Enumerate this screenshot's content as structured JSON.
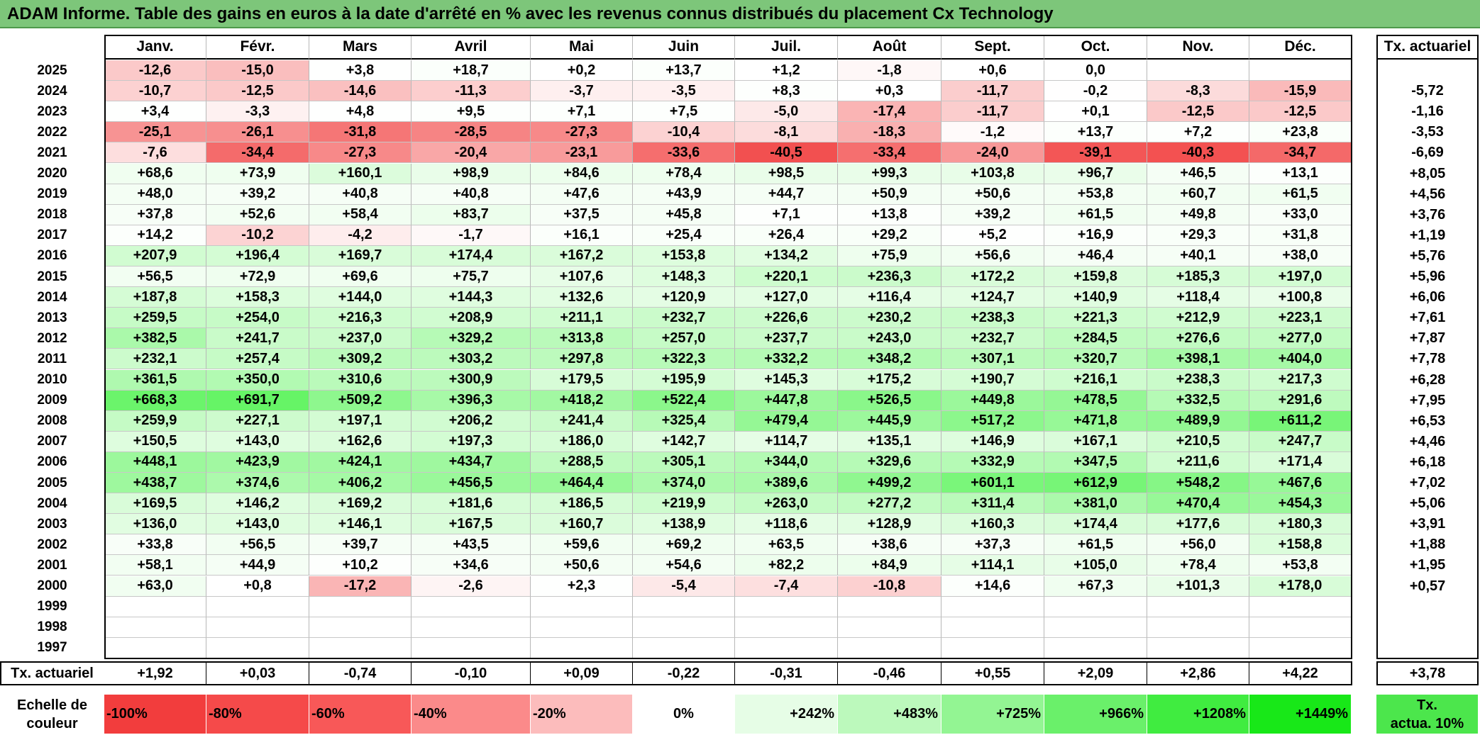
{
  "title": "ADAM Informe. Table des gains en euros à la date d'arrêté en % avec les revenus connus distribués du placement Cx Technology",
  "months": [
    "Janv.",
    "Févr.",
    "Mars",
    "Avril",
    "Mai",
    "Juin",
    "Juil.",
    "Août",
    "Sept.",
    "Oct.",
    "Nov.",
    "Déc."
  ],
  "rate_header": "Tx. actuariel",
  "rows": [
    {
      "year": "2025",
      "cells": [
        "-12,6",
        "-15,0",
        "+3,8",
        "+18,7",
        "+0,2",
        "+13,7",
        "+1,2",
        "-1,8",
        "+0,6",
        "0,0",
        "",
        ""
      ],
      "rate": ""
    },
    {
      "year": "2024",
      "cells": [
        "-10,7",
        "-12,5",
        "-14,6",
        "-11,3",
        "-3,7",
        "-3,5",
        "+8,3",
        "+0,3",
        "-11,7",
        "-0,2",
        "-8,3",
        "-15,9"
      ],
      "rate": "-5,72"
    },
    {
      "year": "2023",
      "cells": [
        "+3,4",
        "-3,3",
        "+4,8",
        "+9,5",
        "+7,1",
        "+7,5",
        "-5,0",
        "-17,4",
        "-11,7",
        "+0,1",
        "-12,5",
        "-12,5"
      ],
      "rate": "-1,16"
    },
    {
      "year": "2022",
      "cells": [
        "-25,1",
        "-26,1",
        "-31,8",
        "-28,5",
        "-27,3",
        "-10,4",
        "-8,1",
        "-18,3",
        "-1,2",
        "+13,7",
        "+7,2",
        "+23,8"
      ],
      "rate": "-3,53"
    },
    {
      "year": "2021",
      "cells": [
        "-7,6",
        "-34,4",
        "-27,3",
        "-20,4",
        "-23,1",
        "-33,6",
        "-40,5",
        "-33,4",
        "-24,0",
        "-39,1",
        "-40,3",
        "-34,7"
      ],
      "rate": "-6,69"
    },
    {
      "year": "2020",
      "cells": [
        "+68,6",
        "+73,9",
        "+160,1",
        "+98,9",
        "+84,6",
        "+78,4",
        "+98,5",
        "+99,3",
        "+103,8",
        "+96,7",
        "+46,5",
        "+13,1"
      ],
      "rate": "+8,05"
    },
    {
      "year": "2019",
      "cells": [
        "+48,0",
        "+39,2",
        "+40,8",
        "+40,8",
        "+47,6",
        "+43,9",
        "+44,7",
        "+50,9",
        "+50,6",
        "+53,8",
        "+60,7",
        "+61,5"
      ],
      "rate": "+4,56"
    },
    {
      "year": "2018",
      "cells": [
        "+37,8",
        "+52,6",
        "+58,4",
        "+83,7",
        "+37,5",
        "+45,8",
        "+7,1",
        "+13,8",
        "+39,2",
        "+61,5",
        "+49,8",
        "+33,0"
      ],
      "rate": "+3,76"
    },
    {
      "year": "2017",
      "cells": [
        "+14,2",
        "-10,2",
        "-4,2",
        "-1,7",
        "+16,1",
        "+25,4",
        "+26,4",
        "+29,2",
        "+5,2",
        "+16,9",
        "+29,3",
        "+31,8"
      ],
      "rate": "+1,19"
    },
    {
      "year": "2016",
      "cells": [
        "+207,9",
        "+196,4",
        "+169,7",
        "+174,4",
        "+167,2",
        "+153,8",
        "+134,2",
        "+75,9",
        "+56,6",
        "+46,4",
        "+40,1",
        "+38,0"
      ],
      "rate": "+5,76"
    },
    {
      "year": "2015",
      "cells": [
        "+56,5",
        "+72,9",
        "+69,6",
        "+75,7",
        "+107,6",
        "+148,3",
        "+220,1",
        "+236,3",
        "+172,2",
        "+159,8",
        "+185,3",
        "+197,0"
      ],
      "rate": "+5,96"
    },
    {
      "year": "2014",
      "cells": [
        "+187,8",
        "+158,3",
        "+144,0",
        "+144,3",
        "+132,6",
        "+120,9",
        "+127,0",
        "+116,4",
        "+124,7",
        "+140,9",
        "+118,4",
        "+100,8"
      ],
      "rate": "+6,06"
    },
    {
      "year": "2013",
      "cells": [
        "+259,5",
        "+254,0",
        "+216,3",
        "+208,9",
        "+211,1",
        "+232,7",
        "+226,6",
        "+230,2",
        "+238,3",
        "+221,3",
        "+212,9",
        "+223,1"
      ],
      "rate": "+7,61"
    },
    {
      "year": "2012",
      "cells": [
        "+382,5",
        "+241,7",
        "+237,0",
        "+329,2",
        "+313,8",
        "+257,0",
        "+237,7",
        "+243,0",
        "+232,7",
        "+284,5",
        "+276,6",
        "+277,0"
      ],
      "rate": "+7,87"
    },
    {
      "year": "2011",
      "cells": [
        "+232,1",
        "+257,4",
        "+309,2",
        "+303,2",
        "+297,8",
        "+322,3",
        "+332,2",
        "+348,2",
        "+307,1",
        "+320,7",
        "+398,1",
        "+404,0"
      ],
      "rate": "+7,78"
    },
    {
      "year": "2010",
      "cells": [
        "+361,5",
        "+350,0",
        "+310,6",
        "+300,9",
        "+179,5",
        "+195,9",
        "+145,3",
        "+175,2",
        "+190,7",
        "+216,1",
        "+238,3",
        "+217,3"
      ],
      "rate": "+6,28"
    },
    {
      "year": "2009",
      "cells": [
        "+668,3",
        "+691,7",
        "+509,2",
        "+396,3",
        "+418,2",
        "+522,4",
        "+447,8",
        "+526,5",
        "+449,8",
        "+478,5",
        "+332,5",
        "+291,6"
      ],
      "rate": "+7,95"
    },
    {
      "year": "2008",
      "cells": [
        "+259,9",
        "+227,1",
        "+197,1",
        "+206,2",
        "+241,4",
        "+325,4",
        "+479,4",
        "+445,9",
        "+517,2",
        "+471,8",
        "+489,9",
        "+611,2"
      ],
      "rate": "+6,53"
    },
    {
      "year": "2007",
      "cells": [
        "+150,5",
        "+143,0",
        "+162,6",
        "+197,3",
        "+186,0",
        "+142,7",
        "+114,7",
        "+135,1",
        "+146,9",
        "+167,1",
        "+210,5",
        "+247,7"
      ],
      "rate": "+4,46"
    },
    {
      "year": "2006",
      "cells": [
        "+448,1",
        "+423,9",
        "+424,1",
        "+434,7",
        "+288,5",
        "+305,1",
        "+344,0",
        "+329,6",
        "+332,9",
        "+347,5",
        "+211,6",
        "+171,4"
      ],
      "rate": "+6,18"
    },
    {
      "year": "2005",
      "cells": [
        "+438,7",
        "+374,6",
        "+406,2",
        "+456,5",
        "+464,4",
        "+374,0",
        "+389,6",
        "+499,2",
        "+601,1",
        "+612,9",
        "+548,2",
        "+467,6"
      ],
      "rate": "+7,02"
    },
    {
      "year": "2004",
      "cells": [
        "+169,5",
        "+146,2",
        "+169,2",
        "+181,6",
        "+186,5",
        "+219,9",
        "+263,0",
        "+277,2",
        "+311,4",
        "+381,0",
        "+470,4",
        "+454,3"
      ],
      "rate": "+5,06"
    },
    {
      "year": "2003",
      "cells": [
        "+136,0",
        "+143,0",
        "+146,1",
        "+167,5",
        "+160,7",
        "+138,9",
        "+118,6",
        "+128,9",
        "+160,3",
        "+174,4",
        "+177,6",
        "+180,3"
      ],
      "rate": "+3,91"
    },
    {
      "year": "2002",
      "cells": [
        "+33,8",
        "+56,5",
        "+39,7",
        "+43,5",
        "+59,6",
        "+69,2",
        "+63,5",
        "+38,6",
        "+37,3",
        "+61,5",
        "+56,0",
        "+158,8"
      ],
      "rate": "+1,88"
    },
    {
      "year": "2001",
      "cells": [
        "+58,1",
        "+44,9",
        "+10,2",
        "+34,6",
        "+50,6",
        "+54,6",
        "+82,2",
        "+84,9",
        "+114,1",
        "+105,0",
        "+78,4",
        "+53,8"
      ],
      "rate": "+1,95"
    },
    {
      "year": "2000",
      "cells": [
        "+63,0",
        "+0,8",
        "-17,2",
        "-2,6",
        "+2,3",
        "-5,4",
        "-7,4",
        "-10,8",
        "+14,6",
        "+67,3",
        "+101,3",
        "+178,0"
      ],
      "rate": "+0,57"
    },
    {
      "year": "1999",
      "cells": [
        "",
        "",
        "",
        "",
        "",
        "",
        "",
        "",
        "",
        "",
        "",
        ""
      ],
      "rate": ""
    },
    {
      "year": "1998",
      "cells": [
        "",
        "",
        "",
        "",
        "",
        "",
        "",
        "",
        "",
        "",
        "",
        ""
      ],
      "rate": ""
    },
    {
      "year": "1997",
      "cells": [
        "",
        "",
        "",
        "",
        "",
        "",
        "",
        "",
        "",
        "",
        "",
        ""
      ],
      "rate": ""
    }
  ],
  "footer": {
    "label": "Tx. actuariel",
    "values": [
      "+1,92",
      "+0,03",
      "-0,74",
      "-0,10",
      "+0,09",
      "-0,22",
      "-0,31",
      "-0,46",
      "+0,55",
      "+2,09",
      "+2,86",
      "+4,22"
    ],
    "total": "+3,78"
  },
  "scale": {
    "label_line1": "Echelle de",
    "label_line2": "couleur",
    "items": [
      "-100%",
      "-80%",
      "-60%",
      "-40%",
      "-20%",
      "0%",
      "+242%",
      "+483%",
      "+725%",
      "+966%",
      "+1208%",
      "+1449%"
    ],
    "colors": [
      "#f23d3d",
      "#f54a4a",
      "#f85858",
      "#fb8a8a",
      "#fcbcbc",
      "#ffffff",
      "#e6fde6",
      "#bcf9bc",
      "#93f593",
      "#6af06a",
      "#40ec40",
      "#18e818"
    ],
    "rate_line1": "Tx.",
    "rate_line2": "actua. 10%",
    "rate_color": "#4ce64c"
  },
  "colors": {
    "title_bg": "#7dc67a"
  }
}
